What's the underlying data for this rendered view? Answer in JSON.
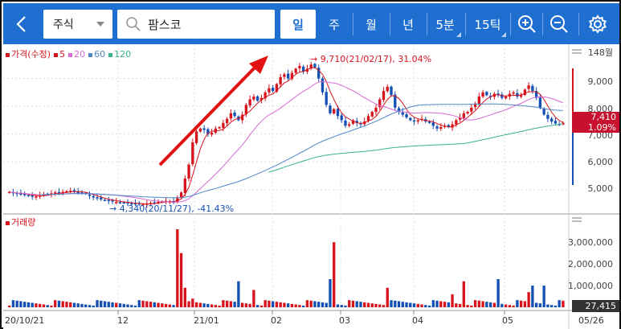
{
  "toolbar": {
    "market": "주식",
    "search_value": "팜스코",
    "periods": [
      "일",
      "주",
      "월",
      "년",
      "5분",
      "15틱"
    ],
    "active_period": "일",
    "zoom_in_icon": "zoom-in-icon",
    "zoom_out_icon": "zoom-out-icon",
    "settings_icon": "gear-icon",
    "back_icon": "chevron-left-icon",
    "search_icon": "search-icon"
  },
  "colors": {
    "toolbar": "#1f6fd0",
    "up": "#d7141d",
    "down": "#1450b4",
    "ma5": "#d7141d",
    "ma20": "#d76ad2",
    "ma60": "#4f86c6",
    "ma120": "#39b38c",
    "arrow": "#e31212"
  },
  "legend": {
    "price": "가격(수정)",
    "ma5": "5",
    "ma20": "20",
    "ma60": "60",
    "ma120": "120",
    "volume": "거래량"
  },
  "price_axis": {
    "ticks": [
      "148월",
      "9,000",
      "8,000",
      "7,000",
      "6,000",
      "5,000"
    ]
  },
  "volume_axis": {
    "ticks": [
      "3,000,000",
      "2,000,000",
      "1,000,000"
    ]
  },
  "current": {
    "price": "7,410",
    "change": "1.09%",
    "volume": "27,415"
  },
  "annotations": {
    "high": "9,710(21/02/17), 31.04%",
    "low": "4,340(20/11/27), -41.43%"
  },
  "x_axis": [
    "20/10/21",
    "12",
    "21/01",
    "02",
    "03",
    "04",
    "05",
    "05/26"
  ],
  "chart_data": {
    "type": "candlestick",
    "price_range": [
      4300,
      10000
    ],
    "closes": [
      4920,
      4880,
      4840,
      4860,
      4810,
      4780,
      4750,
      4760,
      4790,
      4830,
      4850,
      4870,
      4900,
      4880,
      4920,
      4950,
      4960,
      4940,
      4900,
      4870,
      4850,
      4780,
      4720,
      4690,
      4650,
      4630,
      4600,
      4580,
      4560,
      4540,
      4520,
      4530,
      4510,
      4490,
      4470,
      4480,
      4500,
      4520,
      4540,
      4560,
      4580,
      4600,
      4580,
      4560,
      4700,
      4900,
      5400,
      5900,
      6700,
      7100,
      7200,
      7150,
      7000,
      7050,
      7200,
      7250,
      7400,
      7550,
      7750,
      7650,
      7500,
      7700,
      8050,
      8250,
      8350,
      8200,
      8300,
      8500,
      8650,
      8550,
      8800,
      9050,
      9150,
      9000,
      9200,
      9350,
      9450,
      9250,
      9350,
      9500,
      9400,
      9000,
      8500,
      8050,
      7750,
      7900,
      7650,
      7500,
      7300,
      7350,
      7500,
      7400,
      7350,
      7450,
      7650,
      7800,
      7950,
      8250,
      8550,
      8700,
      8400,
      7950,
      7800,
      7700,
      7600,
      7500,
      7450,
      7500,
      7550,
      7450,
      7400,
      7300,
      7200,
      7250,
      7300,
      7250,
      7350,
      7500,
      7600,
      7750,
      7800,
      7950,
      8100,
      8350,
      8500,
      8400,
      8350,
      8450,
      8400,
      8300,
      8350,
      8450,
      8500,
      8350,
      8400,
      8600,
      8750,
      8550,
      8300,
      7950,
      7700,
      7550,
      7450,
      7380,
      7350,
      7410
    ],
    "ma_lines_described": [
      "5",
      "20",
      "60",
      "120"
    ],
    "volume_max": 3600000
  }
}
